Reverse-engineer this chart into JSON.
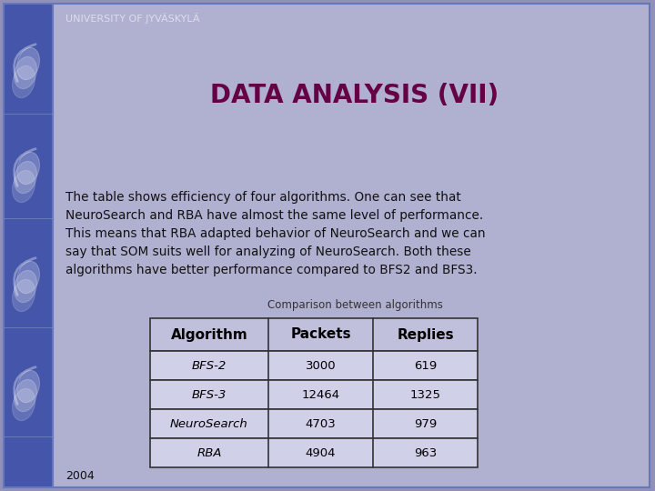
{
  "university_text": "UNIVERSITY OF JYVÄSKYLÄ",
  "title": "DATA ANALYSIS (VII)",
  "body_text": "The table shows efficiency of four algorithms. One can see that\nNeuroSearch and RBA have almost the same level of performance.\nThis means that RBA adapted behavior of NeuroSearch and we can\nsay that SOM suits well for analyzing of NeuroSearch. Both these\nalgorithms have better performance compared to BFS2 and BFS3.",
  "table_title": "Comparison between algorithms",
  "table_headers": [
    "Algorithm",
    "Packets",
    "Replies"
  ],
  "table_rows": [
    [
      "BFS-2",
      "3000",
      "619"
    ],
    [
      "BFS-3",
      "12464",
      "1325"
    ],
    [
      "NeuroSearch",
      "4703",
      "979"
    ],
    [
      "RBA",
      "4904",
      "963"
    ]
  ],
  "year_text": "2004",
  "bg_outer": "#9090b8",
  "bg_main": "#b0b0d0",
  "sidebar_bg": "#4455aa",
  "border_color": "#6677bb",
  "title_color": "#660044",
  "body_color": "#111111",
  "univ_color": "#ddddee",
  "table_caption_color": "#333333",
  "table_header_bg": "#c0c0dc",
  "table_row_bg": "#d0d0e8",
  "table_border": "#333333",
  "year_color": "#111111",
  "sidebar_wing_color": "#8899cc",
  "sidebar_wing_outline": "#aabbdd"
}
